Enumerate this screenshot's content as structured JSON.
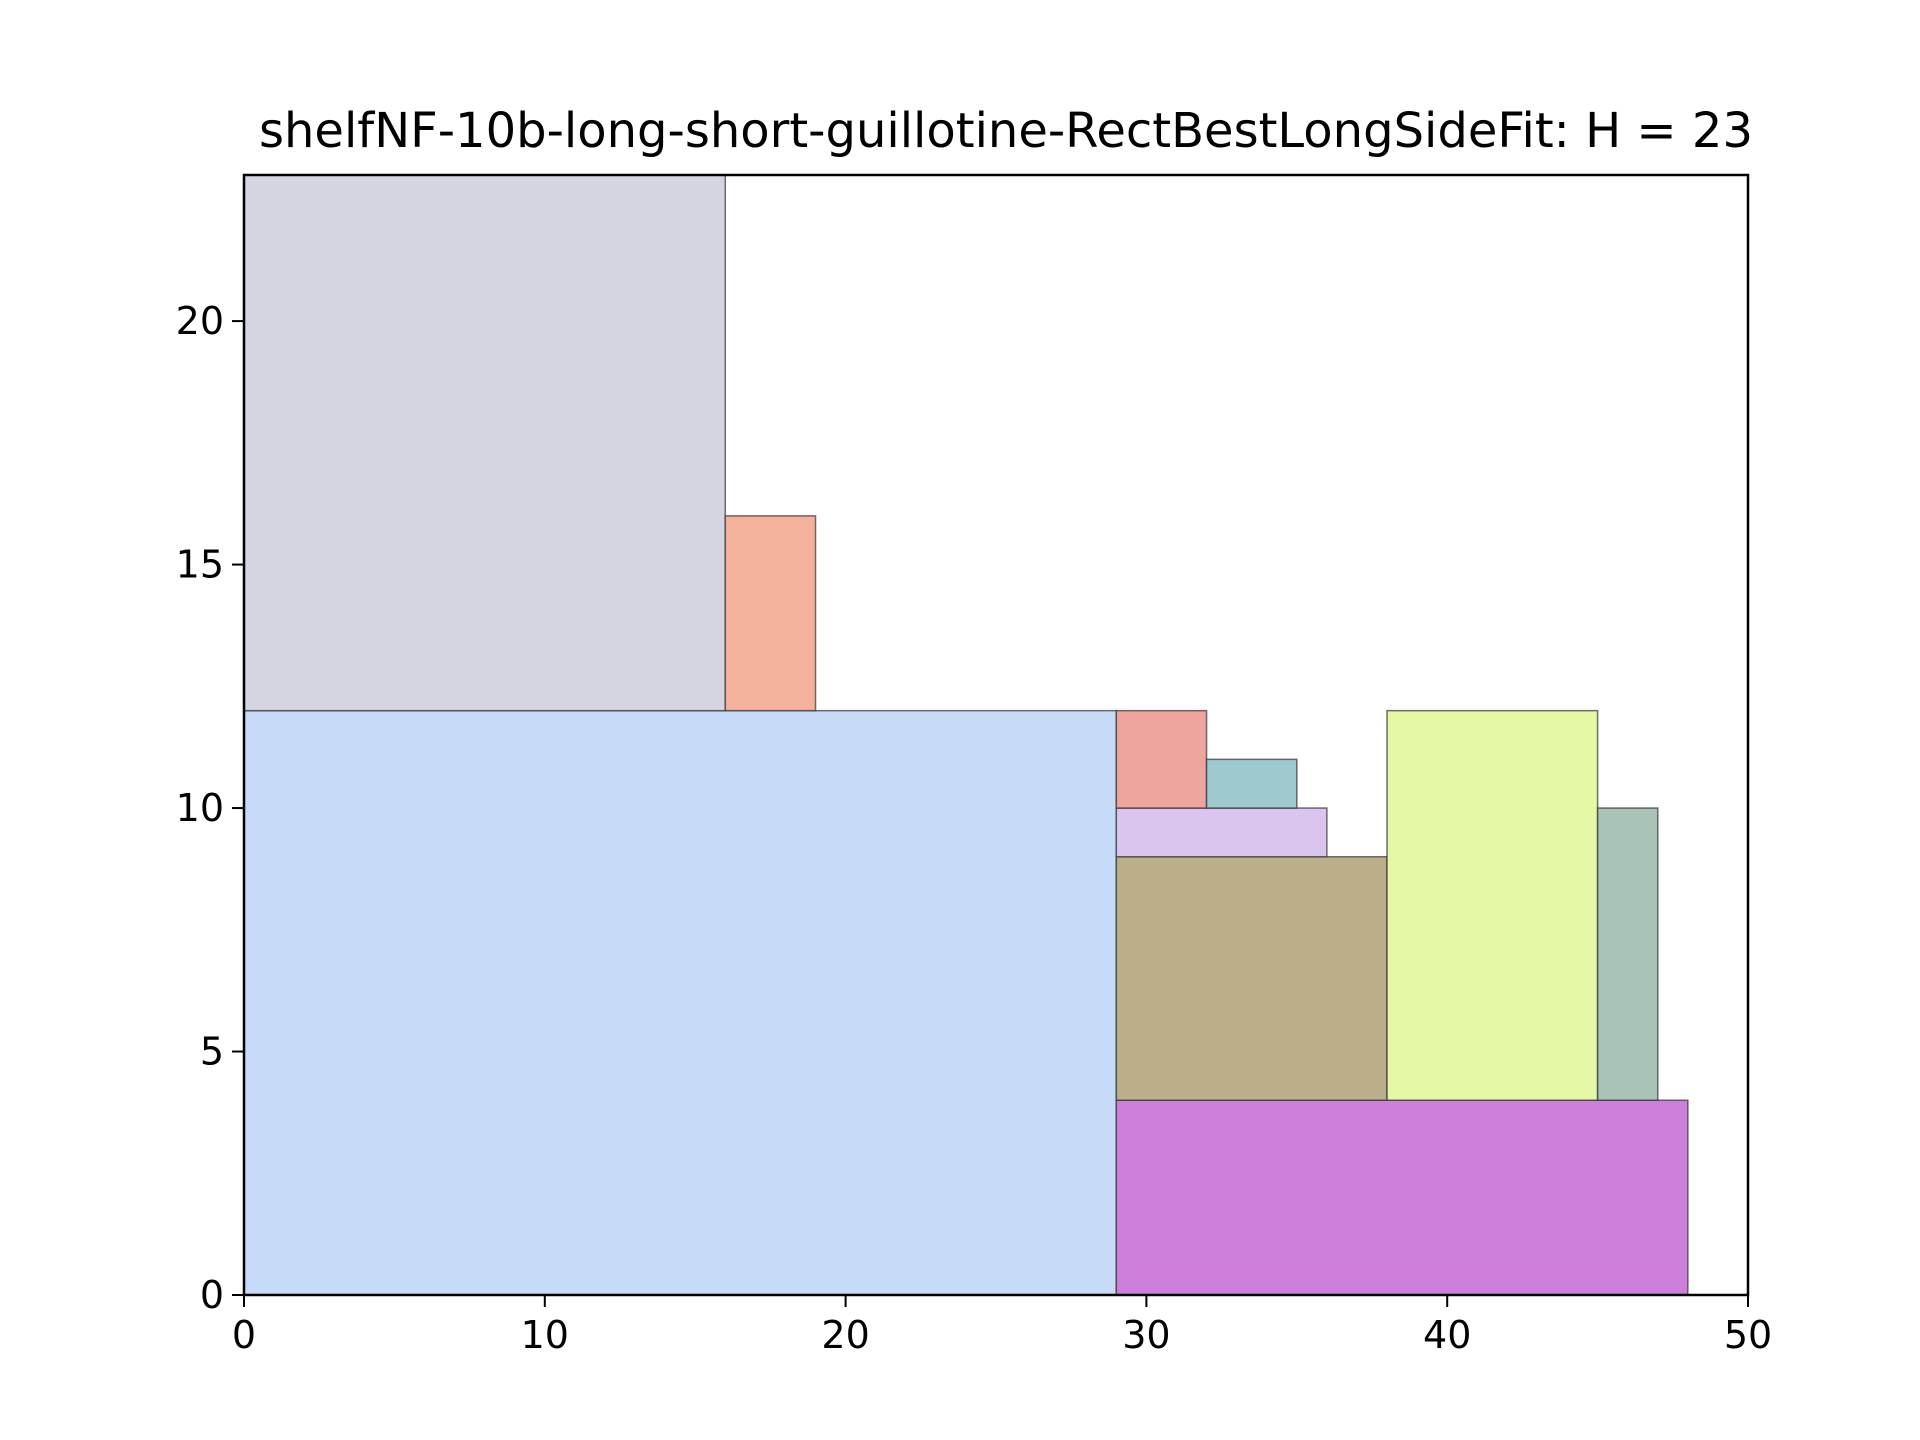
{
  "chart_data": {
    "type": "packing",
    "title": "shelfNF-10b-long-short-guillotine-RectBestLongSideFit: H = 23",
    "xlabel": "",
    "ylabel": "",
    "xlim": [
      0,
      50
    ],
    "ylim": [
      0,
      23
    ],
    "xticks": [
      0,
      10,
      20,
      30,
      40,
      50
    ],
    "yticks": [
      0,
      5,
      10,
      15,
      20
    ],
    "grid": false,
    "rectangles": [
      {
        "x": 0,
        "y": 0,
        "w": 29,
        "h": 12,
        "color": "#c6dbf8"
      },
      {
        "x": 0,
        "y": 12,
        "w": 16,
        "h": 11,
        "color": "#d4d5e1"
      },
      {
        "x": 16,
        "y": 12,
        "w": 3,
        "h": 4,
        "color": "#f4b19b"
      },
      {
        "x": 29,
        "y": 0,
        "w": 19,
        "h": 4,
        "color": "#cc80dc"
      },
      {
        "x": 29,
        "y": 4,
        "w": 9,
        "h": 5,
        "color": "#bbae8b"
      },
      {
        "x": 29,
        "y": 9,
        "w": 7,
        "h": 1,
        "color": "#dac5ef"
      },
      {
        "x": 29,
        "y": 10,
        "w": 3,
        "h": 2,
        "color": "#eea59d"
      },
      {
        "x": 32,
        "y": 10,
        "w": 3,
        "h": 1,
        "color": "#9ecacf"
      },
      {
        "x": 38,
        "y": 4,
        "w": 7,
        "h": 8,
        "color": "#e4f8a5"
      },
      {
        "x": 45,
        "y": 4,
        "w": 2,
        "h": 6,
        "color": "#a9c3b7"
      }
    ]
  }
}
